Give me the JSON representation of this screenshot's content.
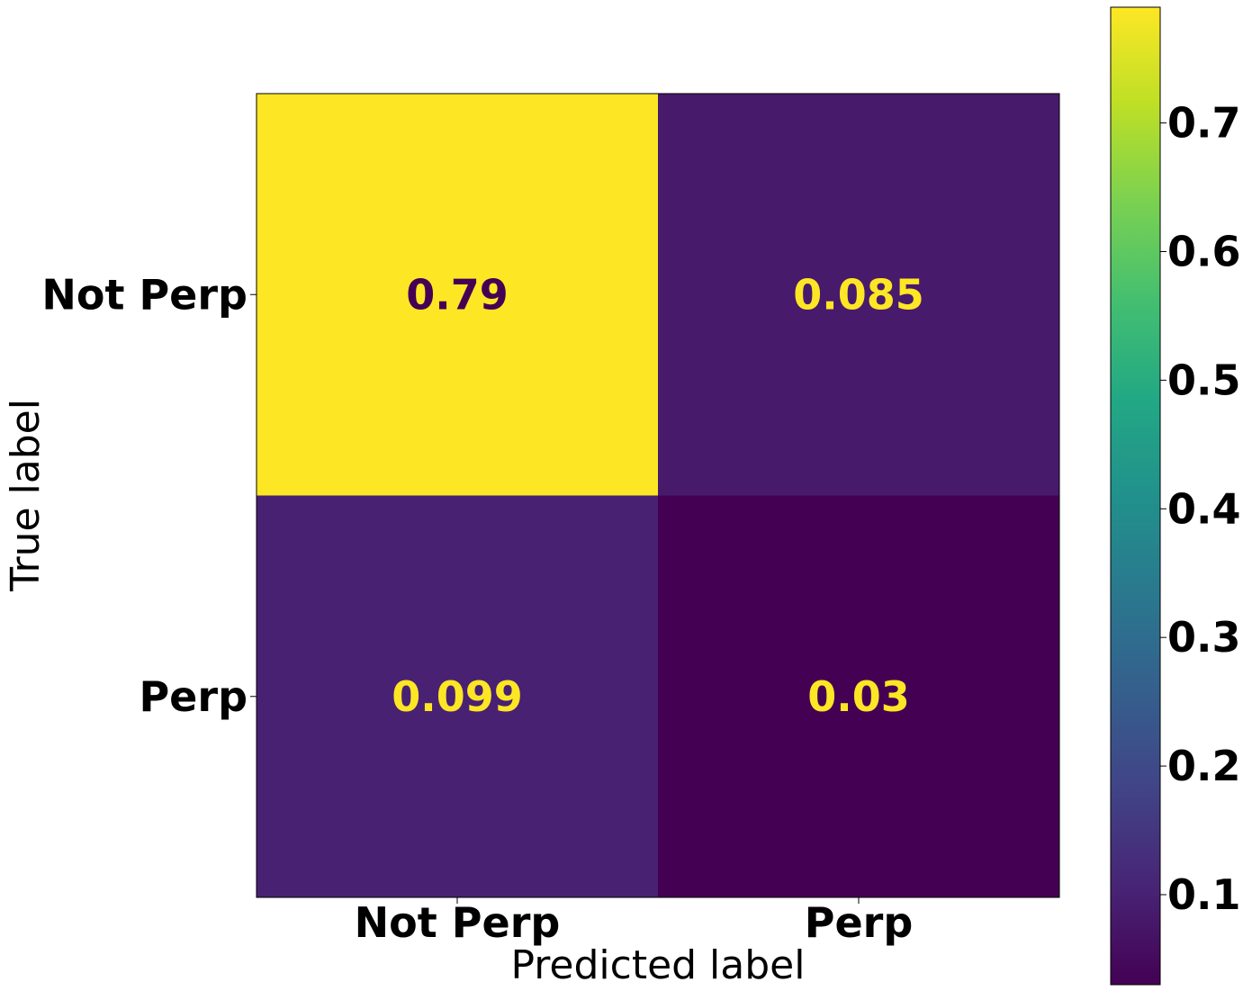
{
  "chart_data": {
    "type": "heatmap",
    "title": "",
    "xlabel": "Predicted label",
    "ylabel": "True label",
    "x_categories": [
      "Not Perp",
      "Perp"
    ],
    "y_categories": [
      "Not Perp",
      "Perp"
    ],
    "values": [
      [
        0.79,
        0.085
      ],
      [
        0.099,
        0.03
      ]
    ],
    "cell_labels": [
      [
        "0.79",
        "0.085"
      ],
      [
        "0.099",
        "0.03"
      ]
    ],
    "colormap": "viridis",
    "colorbar": {
      "range": [
        0.03,
        0.79
      ],
      "ticks": [
        0.1,
        0.2,
        0.3,
        0.4,
        0.5,
        0.6,
        0.7
      ],
      "tick_labels": [
        "0.1",
        "0.2",
        "0.3",
        "0.4",
        "0.5",
        "0.6",
        "0.7"
      ]
    },
    "text_colors": {
      "on_dark": "#fde725",
      "on_bright": "#440154"
    }
  }
}
